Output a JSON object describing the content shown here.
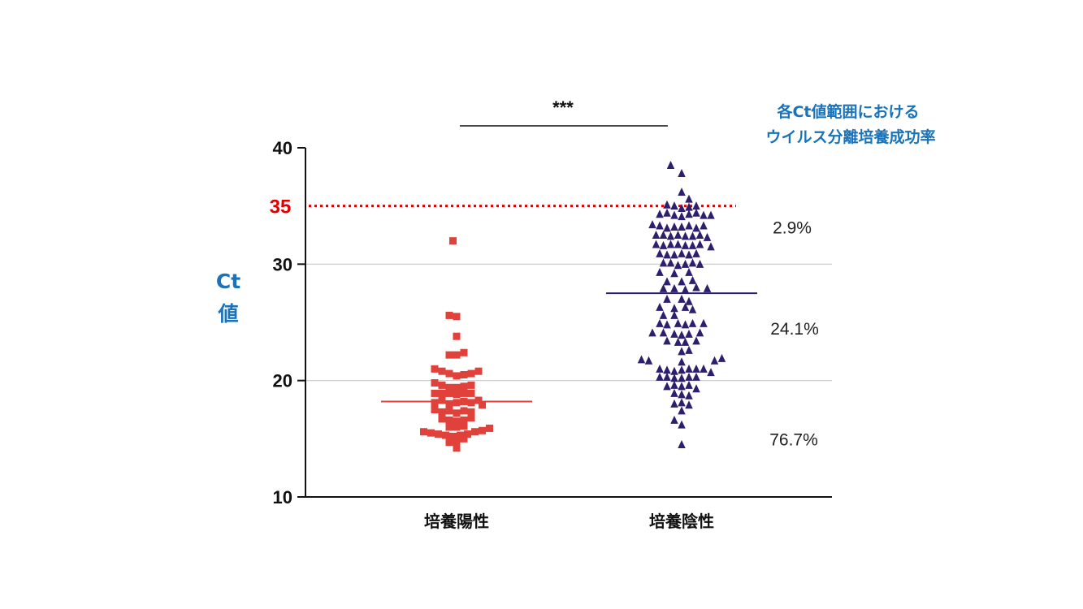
{
  "chart_data": {
    "type": "scatter",
    "ylim": [
      10,
      40
    ],
    "yticks": [
      "10",
      "20",
      "30",
      "40"
    ],
    "ylabel_lines": [
      "Ct",
      "値"
    ],
    "categories": [
      "培養陽性",
      "培養陰性"
    ],
    "grid_y": [
      20,
      30
    ],
    "reference_line": {
      "value": 35,
      "label": "35",
      "color": "#e00000",
      "style": "dotted"
    },
    "significance": "***",
    "annotation_title": [
      "各Ct値範囲における",
      "ウイルス分離培養成功率"
    ],
    "range_percentages": [
      {
        "label": "2.9%",
        "y": 33.2
      },
      {
        "label": "24.1%",
        "y": 24.5
      },
      {
        "label": "76.7%",
        "y": 15.0
      }
    ],
    "series": [
      {
        "category": "培養陽性",
        "marker": "square",
        "color": "#e0413a",
        "median": 18.2,
        "points": [
          [
            -0.05,
            32.0
          ],
          [
            -0.1,
            25.6
          ],
          [
            0.0,
            25.5
          ],
          [
            0.0,
            23.8
          ],
          [
            -0.1,
            22.2
          ],
          [
            0.0,
            22.2
          ],
          [
            0.1,
            22.4
          ],
          [
            -0.3,
            21.0
          ],
          [
            -0.2,
            20.8
          ],
          [
            -0.1,
            20.6
          ],
          [
            0.0,
            20.4
          ],
          [
            0.1,
            20.5
          ],
          [
            0.2,
            20.6
          ],
          [
            0.3,
            20.8
          ],
          [
            -0.3,
            19.8
          ],
          [
            -0.2,
            19.6
          ],
          [
            -0.1,
            19.4
          ],
          [
            0.0,
            19.4
          ],
          [
            0.1,
            19.5
          ],
          [
            0.2,
            19.6
          ],
          [
            -0.3,
            18.9
          ],
          [
            -0.2,
            18.9
          ],
          [
            -0.1,
            18.9
          ],
          [
            0.0,
            18.8
          ],
          [
            0.1,
            18.9
          ],
          [
            0.2,
            18.9
          ],
          [
            -0.3,
            18.1
          ],
          [
            -0.2,
            18.3
          ],
          [
            -0.1,
            18.0
          ],
          [
            0.0,
            18.1
          ],
          [
            0.1,
            18.2
          ],
          [
            0.2,
            18.1
          ],
          [
            0.3,
            18.3
          ],
          [
            0.35,
            17.9
          ],
          [
            -0.3,
            17.5
          ],
          [
            -0.2,
            17.3
          ],
          [
            -0.1,
            17.4
          ],
          [
            0.0,
            17.2
          ],
          [
            0.1,
            17.4
          ],
          [
            0.2,
            17.3
          ],
          [
            -0.2,
            16.7
          ],
          [
            -0.1,
            16.6
          ],
          [
            0.0,
            16.5
          ],
          [
            0.1,
            16.6
          ],
          [
            0.2,
            16.8
          ],
          [
            -0.1,
            16.0
          ],
          [
            0.0,
            16.0
          ],
          [
            0.1,
            16.1
          ],
          [
            -0.45,
            15.6
          ],
          [
            -0.35,
            15.5
          ],
          [
            -0.25,
            15.4
          ],
          [
            -0.15,
            15.3
          ],
          [
            -0.05,
            15.2
          ],
          [
            0.05,
            15.3
          ],
          [
            0.15,
            15.4
          ],
          [
            0.25,
            15.6
          ],
          [
            0.35,
            15.7
          ],
          [
            0.45,
            15.9
          ],
          [
            -0.1,
            14.7
          ],
          [
            0.0,
            14.8
          ],
          [
            0.1,
            15.0
          ],
          [
            0.0,
            14.2
          ]
        ]
      },
      {
        "category": "培養陰性",
        "marker": "triangle",
        "color": "#2e1e6e",
        "median": 27.5,
        "points": [
          [
            -0.15,
            38.5
          ],
          [
            0.0,
            37.8
          ],
          [
            0.0,
            36.2
          ],
          [
            0.1,
            35.6
          ],
          [
            -0.2,
            35.1
          ],
          [
            -0.1,
            35.0
          ],
          [
            0.0,
            34.8
          ],
          [
            0.1,
            34.9
          ],
          [
            0.2,
            35.0
          ],
          [
            -0.3,
            34.3
          ],
          [
            -0.2,
            34.4
          ],
          [
            -0.1,
            34.2
          ],
          [
            0.0,
            34.1
          ],
          [
            0.1,
            34.3
          ],
          [
            0.2,
            34.4
          ],
          [
            0.3,
            34.2
          ],
          [
            0.4,
            34.2
          ],
          [
            -0.4,
            33.4
          ],
          [
            -0.3,
            33.3
          ],
          [
            -0.2,
            33.1
          ],
          [
            -0.1,
            33.2
          ],
          [
            0.0,
            33.2
          ],
          [
            0.1,
            33.3
          ],
          [
            0.2,
            33.1
          ],
          [
            0.3,
            33.3
          ],
          [
            -0.35,
            32.5
          ],
          [
            -0.25,
            32.5
          ],
          [
            -0.15,
            32.4
          ],
          [
            -0.05,
            32.5
          ],
          [
            0.05,
            32.4
          ],
          [
            0.15,
            32.4
          ],
          [
            0.25,
            32.5
          ],
          [
            0.35,
            32.3
          ],
          [
            -0.35,
            31.7
          ],
          [
            -0.25,
            31.6
          ],
          [
            -0.15,
            31.7
          ],
          [
            -0.05,
            31.7
          ],
          [
            0.05,
            31.6
          ],
          [
            0.15,
            31.6
          ],
          [
            0.25,
            31.7
          ],
          [
            0.4,
            31.5
          ],
          [
            -0.3,
            30.9
          ],
          [
            -0.2,
            30.8
          ],
          [
            -0.1,
            30.8
          ],
          [
            0.0,
            30.9
          ],
          [
            0.1,
            30.8
          ],
          [
            0.2,
            30.9
          ],
          [
            -0.25,
            30.1
          ],
          [
            -0.15,
            30.1
          ],
          [
            -0.05,
            29.9
          ],
          [
            0.05,
            30.0
          ],
          [
            0.15,
            30.1
          ],
          [
            0.25,
            30.0
          ],
          [
            -0.3,
            29.3
          ],
          [
            -0.1,
            29.2
          ],
          [
            0.1,
            29.3
          ],
          [
            -0.2,
            28.5
          ],
          [
            0.0,
            28.5
          ],
          [
            0.15,
            28.6
          ],
          [
            -0.25,
            27.9
          ],
          [
            -0.1,
            27.9
          ],
          [
            0.05,
            27.8
          ],
          [
            0.2,
            28.0
          ],
          [
            0.35,
            27.9
          ],
          [
            -0.2,
            27.0
          ],
          [
            0.0,
            27.0
          ],
          [
            0.1,
            26.8
          ],
          [
            -0.3,
            26.3
          ],
          [
            -0.1,
            26.2
          ],
          [
            0.05,
            26.3
          ],
          [
            0.15,
            26.1
          ],
          [
            -0.25,
            25.6
          ],
          [
            -0.1,
            25.6
          ],
          [
            -0.3,
            24.9
          ],
          [
            -0.2,
            24.8
          ],
          [
            -0.05,
            24.9
          ],
          [
            0.05,
            24.8
          ],
          [
            0.15,
            24.9
          ],
          [
            0.3,
            24.9
          ],
          [
            -0.4,
            24.1
          ],
          [
            -0.25,
            24.1
          ],
          [
            -0.1,
            24.0
          ],
          [
            0.0,
            23.9
          ],
          [
            0.1,
            24.0
          ],
          [
            0.25,
            24.1
          ],
          [
            -0.2,
            23.4
          ],
          [
            -0.05,
            23.3
          ],
          [
            0.05,
            23.3
          ],
          [
            0.2,
            23.4
          ],
          [
            0.0,
            22.5
          ],
          [
            0.1,
            22.6
          ],
          [
            -0.55,
            21.8
          ],
          [
            -0.45,
            21.7
          ],
          [
            0.0,
            21.6
          ],
          [
            0.45,
            21.7
          ],
          [
            0.55,
            21.9
          ],
          [
            -0.3,
            21.0
          ],
          [
            -0.2,
            20.9
          ],
          [
            -0.1,
            20.8
          ],
          [
            0.0,
            20.9
          ],
          [
            0.1,
            21.0
          ],
          [
            0.2,
            21.0
          ],
          [
            0.3,
            21.0
          ],
          [
            -0.3,
            20.3
          ],
          [
            -0.2,
            20.3
          ],
          [
            -0.1,
            20.2
          ],
          [
            0.0,
            20.2
          ],
          [
            0.1,
            20.3
          ],
          [
            0.2,
            20.3
          ],
          [
            0.4,
            20.7
          ],
          [
            -0.2,
            19.5
          ],
          [
            -0.1,
            19.6
          ],
          [
            0.0,
            19.5
          ],
          [
            0.1,
            19.6
          ],
          [
            0.2,
            19.3
          ],
          [
            -0.1,
            18.9
          ],
          [
            0.0,
            18.8
          ],
          [
            0.1,
            18.7
          ],
          [
            -0.1,
            18.0
          ],
          [
            0.0,
            18.1
          ],
          [
            0.1,
            17.9
          ],
          [
            0.0,
            17.4
          ],
          [
            -0.1,
            16.6
          ],
          [
            0.0,
            16.2
          ],
          [
            0.0,
            14.5
          ]
        ]
      }
    ]
  }
}
